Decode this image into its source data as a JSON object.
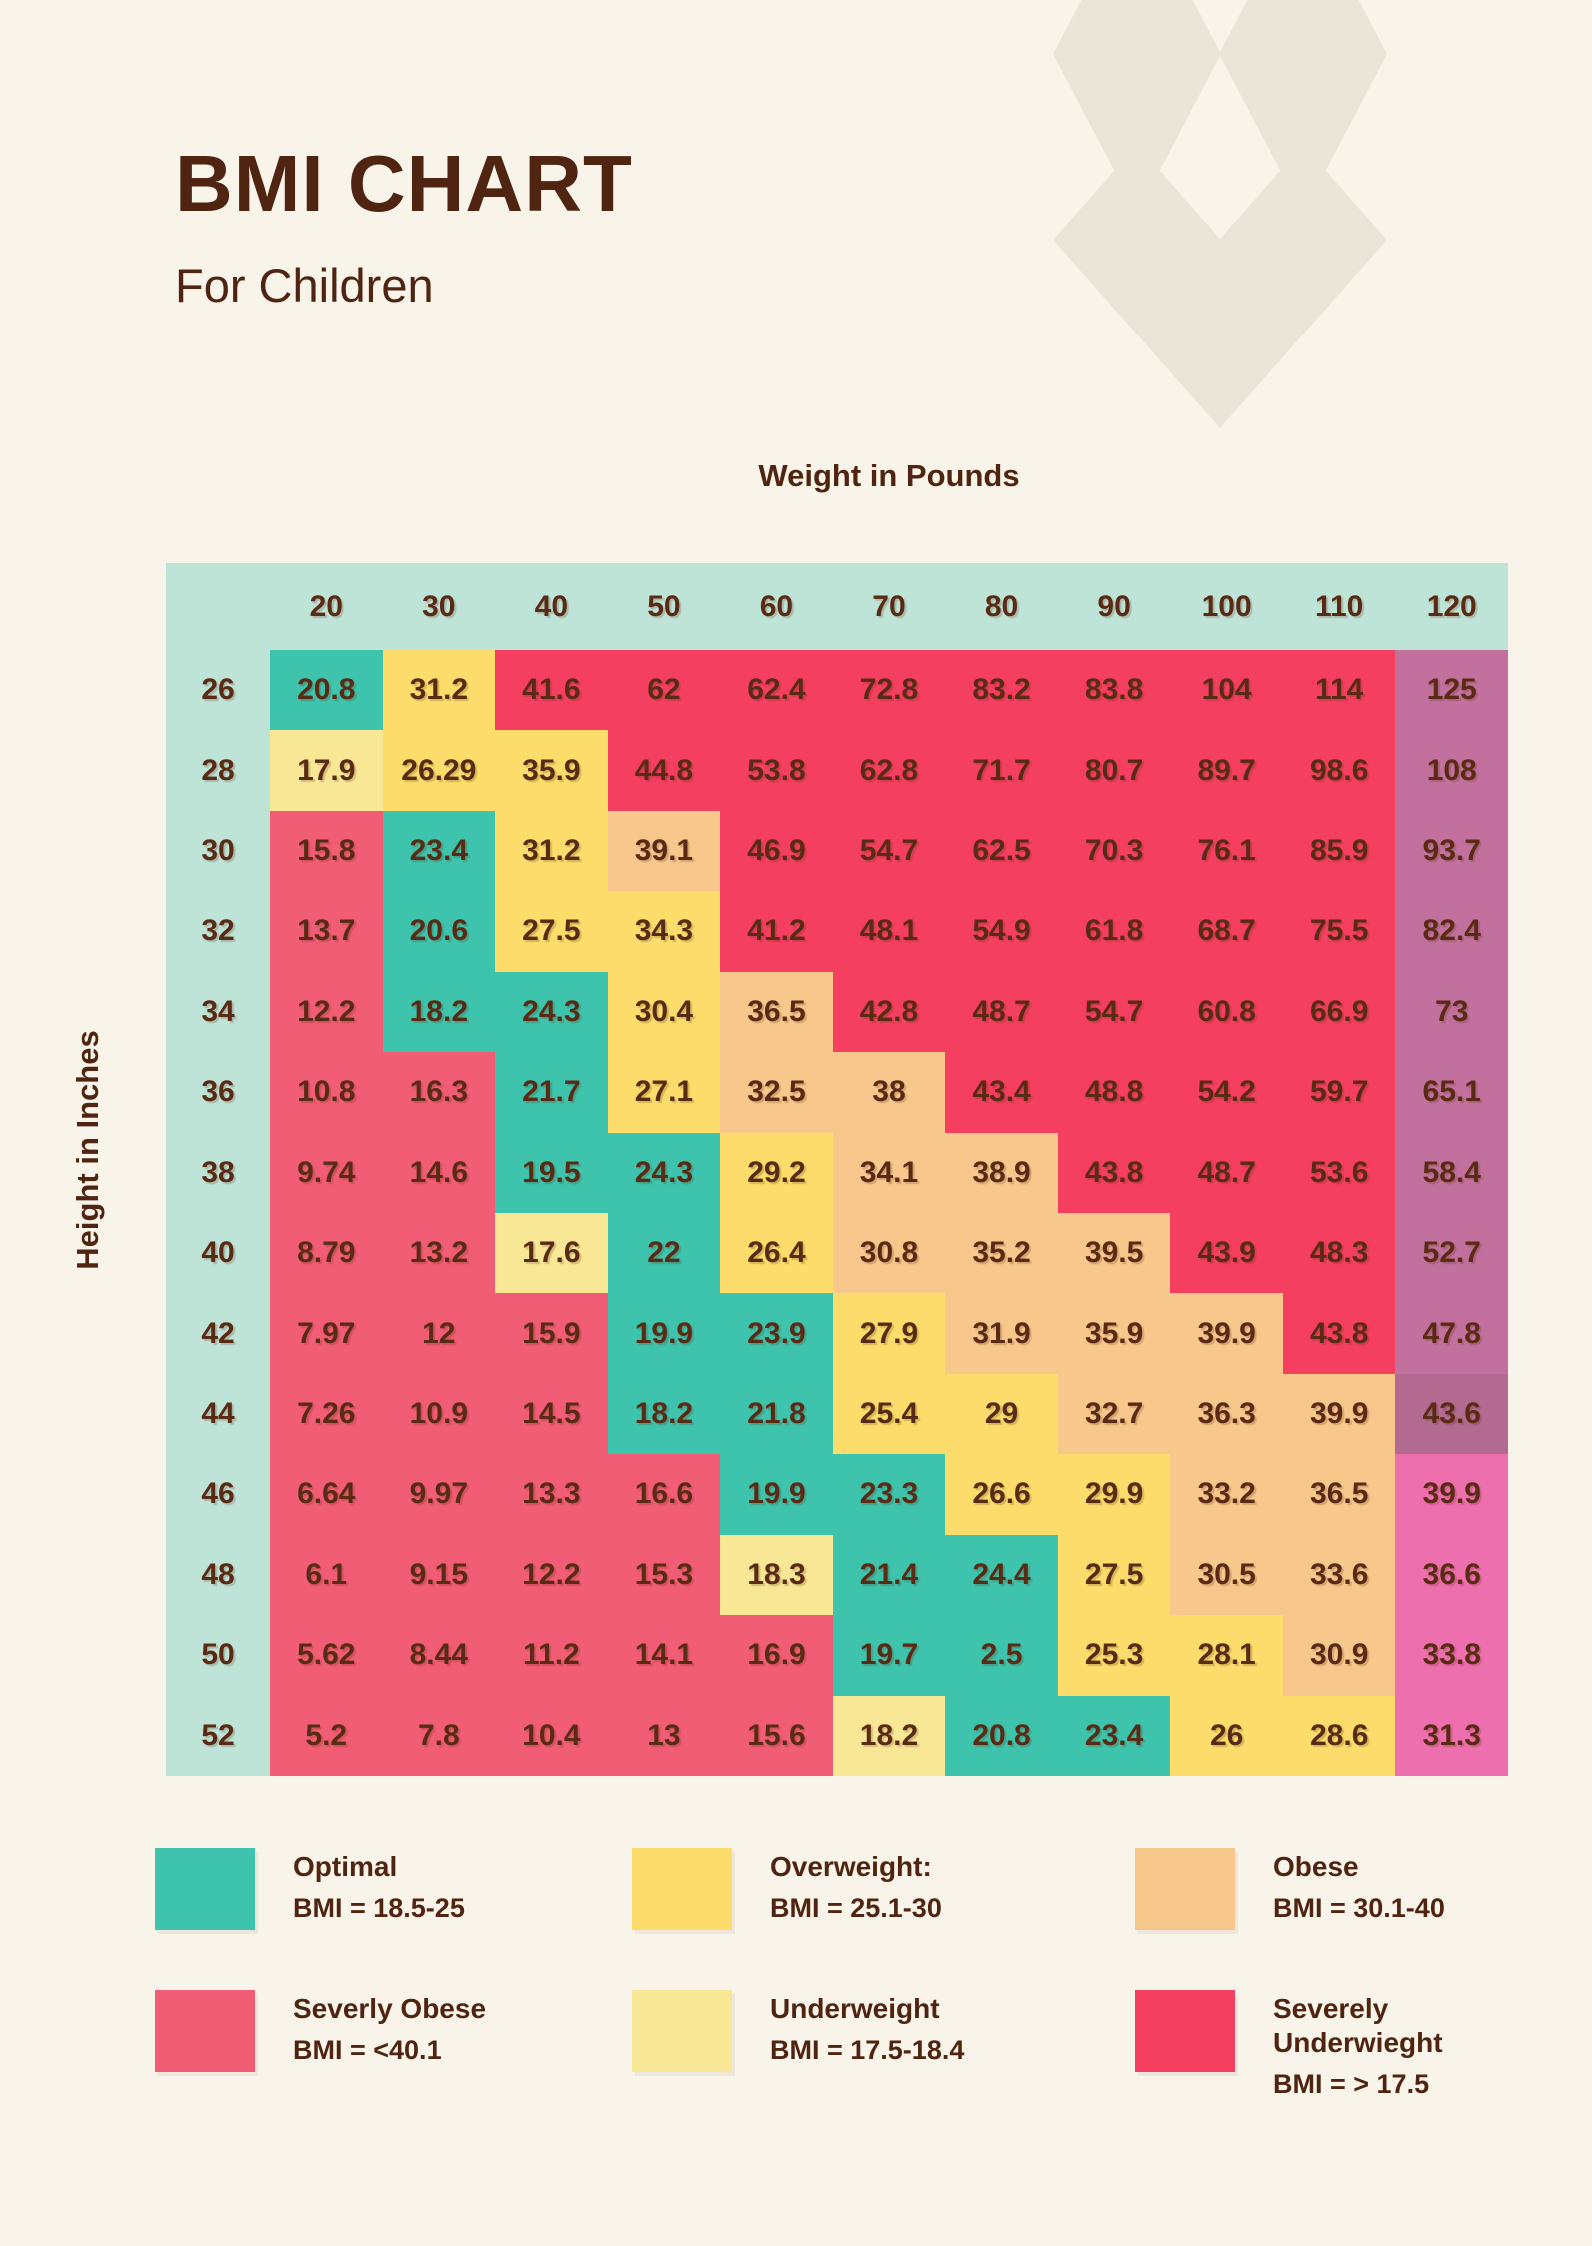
{
  "header": {
    "title": "BMI CHART",
    "subtitle": "For Children"
  },
  "axes": {
    "x_label": "Weight in Pounds",
    "y_label": "Height in Inches"
  },
  "colors": {
    "page_bg": "#f8f4e9",
    "decoration": "#e9e6d9",
    "text_brown": "#4f2410",
    "table_base": "#bee3d7",
    "optimal": "#3ec3ac",
    "overweight": "#fcdc6b",
    "underweight": "#f8e795",
    "obese": "#f7c78c",
    "severely_obese": "#f15d74",
    "severely_underweight": "#f53f60",
    "mauve": "#c2719e",
    "mauve_dark": "#b26a90",
    "pink": "#ee6fae"
  },
  "chart_data": {
    "type": "heatmap",
    "title": "BMI CHART",
    "subtitle": "For Children",
    "xlabel": "Weight in Pounds",
    "ylabel": "Height in Inches",
    "x_categories": [
      "20",
      "30",
      "40",
      "50",
      "60",
      "70",
      "80",
      "90",
      "100",
      "110",
      "120"
    ],
    "y_categories": [
      "26",
      "28",
      "30",
      "32",
      "34",
      "36",
      "38",
      "40",
      "42",
      "44",
      "46",
      "48",
      "50",
      "52"
    ],
    "values": [
      [
        "20.8",
        "31.2",
        "41.6",
        "62",
        "62.4",
        "72.8",
        "83.2",
        "83.8",
        "104",
        "114",
        "125"
      ],
      [
        "17.9",
        "26.29",
        "35.9",
        "44.8",
        "53.8",
        "62.8",
        "71.7",
        "80.7",
        "89.7",
        "98.6",
        "108"
      ],
      [
        "15.8",
        "23.4",
        "31.2",
        "39.1",
        "46.9",
        "54.7",
        "62.5",
        "70.3",
        "76.1",
        "85.9",
        "93.7"
      ],
      [
        "13.7",
        "20.6",
        "27.5",
        "34.3",
        "41.2",
        "48.1",
        "54.9",
        "61.8",
        "68.7",
        "75.5",
        "82.4"
      ],
      [
        "12.2",
        "18.2",
        "24.3",
        "30.4",
        "36.5",
        "42.8",
        "48.7",
        "54.7",
        "60.8",
        "66.9",
        "73"
      ],
      [
        "10.8",
        "16.3",
        "21.7",
        "27.1",
        "32.5",
        "38",
        "43.4",
        "48.8",
        "54.2",
        "59.7",
        "65.1"
      ],
      [
        "9.74",
        "14.6",
        "19.5",
        "24.3",
        "29.2",
        "34.1",
        "38.9",
        "43.8",
        "48.7",
        "53.6",
        "58.4"
      ],
      [
        "8.79",
        "13.2",
        "17.6",
        "22",
        "26.4",
        "30.8",
        "35.2",
        "39.5",
        "43.9",
        "48.3",
        "52.7"
      ],
      [
        "7.97",
        "12",
        "15.9",
        "19.9",
        "23.9",
        "27.9",
        "31.9",
        "35.9",
        "39.9",
        "43.8",
        "47.8"
      ],
      [
        "7.26",
        "10.9",
        "14.5",
        "18.2",
        "21.8",
        "25.4",
        "29",
        "32.7",
        "36.3",
        "39.9",
        "43.6"
      ],
      [
        "6.64",
        "9.97",
        "13.3",
        "16.6",
        "19.9",
        "23.3",
        "26.6",
        "29.9",
        "33.2",
        "36.5",
        "39.9"
      ],
      [
        "6.1",
        "9.15",
        "12.2",
        "15.3",
        "18.3",
        "21.4",
        "24.4",
        "27.5",
        "30.5",
        "33.6",
        "36.6"
      ],
      [
        "5.62",
        "8.44",
        "11.2",
        "14.1",
        "16.9",
        "19.7",
        "2.5",
        "25.3",
        "28.1",
        "30.9",
        "33.8"
      ],
      [
        "5.2",
        "7.8",
        "10.4",
        "13",
        "15.6",
        "18.2",
        "20.8",
        "23.4",
        "26",
        "28.6",
        "31.3"
      ]
    ],
    "cell_categories": [
      [
        "T",
        "Y",
        "S",
        "S",
        "S",
        "S",
        "S",
        "S",
        "S",
        "S",
        "M"
      ],
      [
        "U",
        "Y",
        "Y",
        "S",
        "S",
        "S",
        "S",
        "S",
        "S",
        "S",
        "M"
      ],
      [
        "R",
        "T",
        "Y",
        "O",
        "S",
        "S",
        "S",
        "S",
        "S",
        "S",
        "M"
      ],
      [
        "R",
        "T",
        "Y",
        "Y",
        "S",
        "S",
        "S",
        "S",
        "S",
        "S",
        "M"
      ],
      [
        "R",
        "T",
        "T",
        "Y",
        "O",
        "S",
        "S",
        "S",
        "S",
        "S",
        "M"
      ],
      [
        "R",
        "R",
        "T",
        "Y",
        "O",
        "O",
        "S",
        "S",
        "S",
        "S",
        "M"
      ],
      [
        "R",
        "R",
        "T",
        "T",
        "Y",
        "O",
        "O",
        "S",
        "S",
        "S",
        "M"
      ],
      [
        "R",
        "R",
        "U",
        "T",
        "Y",
        "O",
        "O",
        "O",
        "S",
        "S",
        "M"
      ],
      [
        "R",
        "R",
        "R",
        "T",
        "T",
        "Y",
        "O",
        "O",
        "O",
        "S",
        "M"
      ],
      [
        "R",
        "R",
        "R",
        "T",
        "T",
        "Y",
        "Y",
        "O",
        "O",
        "O",
        "MD"
      ],
      [
        "R",
        "R",
        "R",
        "R",
        "T",
        "T",
        "Y",
        "Y",
        "O",
        "O",
        "P"
      ],
      [
        "R",
        "R",
        "R",
        "R",
        "U",
        "T",
        "T",
        "Y",
        "O",
        "O",
        "P"
      ],
      [
        "R",
        "R",
        "R",
        "R",
        "R",
        "T",
        "T",
        "Y",
        "Y",
        "O",
        "P"
      ],
      [
        "R",
        "R",
        "R",
        "R",
        "R",
        "U",
        "T",
        "T",
        "Y",
        "Y",
        "P"
      ]
    ],
    "category_codes": {
      "T": "optimal",
      "Y": "overweight",
      "U": "underweight",
      "O": "obese",
      "R": "severely_obese",
      "S": "severely_underweight",
      "M": "mauve",
      "MD": "mauve_dark",
      "P": "pink"
    }
  },
  "legend": {
    "items": [
      {
        "name": "Optimal",
        "bmi": "BMI = 18.5-25",
        "color": "optimal"
      },
      {
        "name": "Overweight:",
        "bmi": "BMI = 25.1-30",
        "color": "overweight"
      },
      {
        "name": "Obese",
        "bmi": "BMI = 30.1-40",
        "color": "obese"
      },
      {
        "name": "Severly Obese",
        "bmi": "BMI = <40.1",
        "color": "severely_obese"
      },
      {
        "name": "Underweight",
        "bmi": "BMI = 17.5-18.4",
        "color": "underweight"
      },
      {
        "name": "Severely\nUnderwieght",
        "bmi": "BMI = > 17.5",
        "color": "severely_underweight"
      }
    ]
  }
}
